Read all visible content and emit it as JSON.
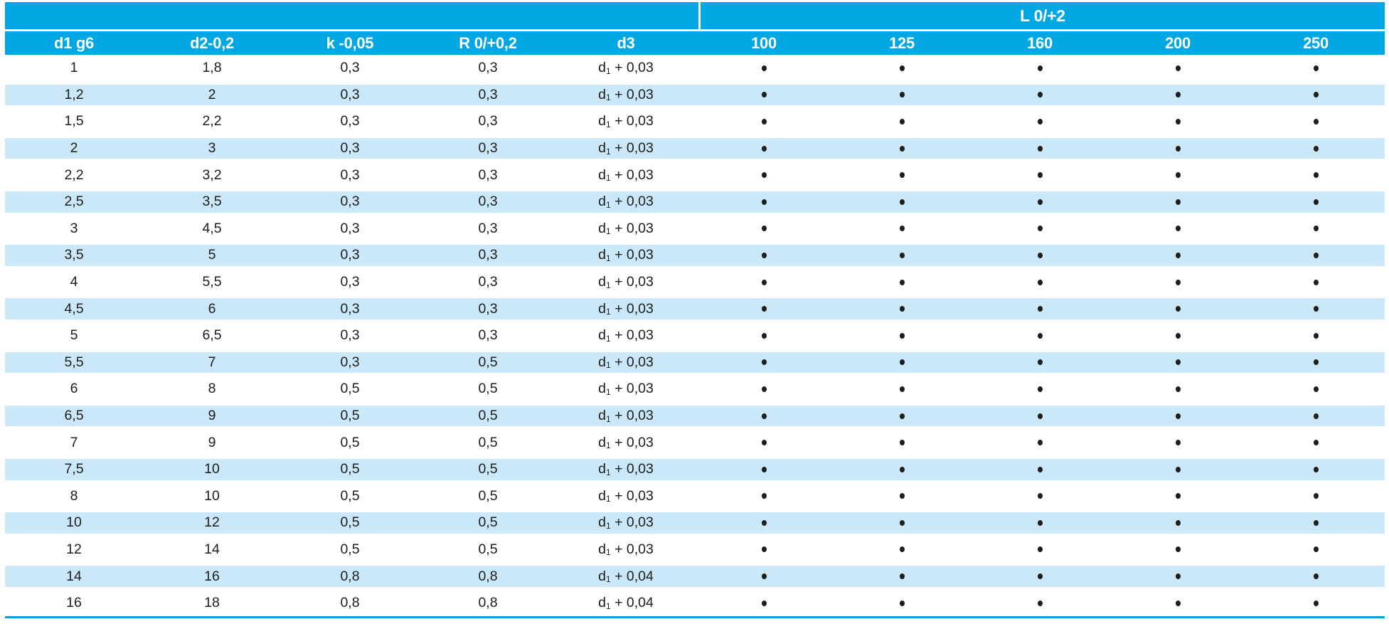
{
  "table": {
    "span_header": "L 0/+2",
    "columns": {
      "d1": "d1 g6",
      "d2": "d2-0,2",
      "k": "k -0,05",
      "r": "R 0/+0,2",
      "d3": "d3"
    },
    "length_columns": [
      "100",
      "125",
      "160",
      "200",
      "250"
    ],
    "bullet": "•",
    "rows": [
      {
        "d1": "1",
        "d2": "1,8",
        "k": "0,3",
        "r": "0,3",
        "d3": {
          "base": "d",
          "sub": "1",
          "rest": " + 0,03"
        },
        "dots": [
          true,
          true,
          true,
          true,
          true
        ]
      },
      {
        "d1": "1,2",
        "d2": "2",
        "k": "0,3",
        "r": "0,3",
        "d3": {
          "base": "d",
          "sub": "1",
          "rest": " + 0,03"
        },
        "dots": [
          true,
          true,
          true,
          true,
          true
        ]
      },
      {
        "d1": "1,5",
        "d2": "2,2",
        "k": "0,3",
        "r": "0,3",
        "d3": {
          "base": "d",
          "sub": "1",
          "rest": " + 0,03"
        },
        "dots": [
          true,
          true,
          true,
          true,
          true
        ]
      },
      {
        "d1": "2",
        "d2": "3",
        "k": "0,3",
        "r": "0,3",
        "d3": {
          "base": "d",
          "sub": "1",
          "rest": " + 0,03"
        },
        "dots": [
          true,
          true,
          true,
          true,
          true
        ]
      },
      {
        "d1": "2,2",
        "d2": "3,2",
        "k": "0,3",
        "r": "0,3",
        "d3": {
          "base": "d",
          "sub": "1",
          "rest": " + 0,03"
        },
        "dots": [
          true,
          true,
          true,
          true,
          true
        ]
      },
      {
        "d1": "2,5",
        "d2": "3,5",
        "k": "0,3",
        "r": "0,3",
        "d3": {
          "base": "d",
          "sub": "1",
          "rest": " + 0,03"
        },
        "dots": [
          true,
          true,
          true,
          true,
          true
        ]
      },
      {
        "d1": "3",
        "d2": "4,5",
        "k": "0,3",
        "r": "0,3",
        "d3": {
          "base": "d",
          "sub": "1",
          "rest": " + 0,03"
        },
        "dots": [
          true,
          true,
          true,
          true,
          true
        ]
      },
      {
        "d1": "3,5",
        "d2": "5",
        "k": "0,3",
        "r": "0,3",
        "d3": {
          "base": "d",
          "sub": "1",
          "rest": " + 0,03"
        },
        "dots": [
          true,
          true,
          true,
          true,
          true
        ]
      },
      {
        "d1": "4",
        "d2": "5,5",
        "k": "0,3",
        "r": "0,3",
        "d3": {
          "base": "d",
          "sub": "1",
          "rest": " + 0,03"
        },
        "dots": [
          true,
          true,
          true,
          true,
          true
        ]
      },
      {
        "d1": "4,5",
        "d2": "6",
        "k": "0,3",
        "r": "0,3",
        "d3": {
          "base": "d",
          "sub": "1",
          "rest": " + 0,03"
        },
        "dots": [
          true,
          true,
          true,
          true,
          true
        ]
      },
      {
        "d1": "5",
        "d2": "6,5",
        "k": "0,3",
        "r": "0,3",
        "d3": {
          "base": "d",
          "sub": "1",
          "rest": " + 0,03"
        },
        "dots": [
          true,
          true,
          true,
          true,
          true
        ]
      },
      {
        "d1": "5,5",
        "d2": "7",
        "k": "0,3",
        "r": "0,5",
        "d3": {
          "base": "d",
          "sub": "1",
          "rest": " + 0,03"
        },
        "dots": [
          true,
          true,
          true,
          true,
          true
        ]
      },
      {
        "d1": "6",
        "d2": "8",
        "k": "0,5",
        "r": "0,5",
        "d3": {
          "base": "d",
          "sub": "1",
          "rest": " + 0,03"
        },
        "dots": [
          true,
          true,
          true,
          true,
          true
        ]
      },
      {
        "d1": "6,5",
        "d2": "9",
        "k": "0,5",
        "r": "0,5",
        "d3": {
          "base": "d",
          "sub": "1",
          "rest": " + 0,03"
        },
        "dots": [
          true,
          true,
          true,
          true,
          true
        ]
      },
      {
        "d1": "7",
        "d2": "9",
        "k": "0,5",
        "r": "0,5",
        "d3": {
          "base": "d",
          "sub": "1",
          "rest": " + 0,03"
        },
        "dots": [
          true,
          true,
          true,
          true,
          true
        ]
      },
      {
        "d1": "7,5",
        "d2": "10",
        "k": "0,5",
        "r": "0,5",
        "d3": {
          "base": "d",
          "sub": "1",
          "rest": " + 0,03"
        },
        "dots": [
          true,
          true,
          true,
          true,
          true
        ]
      },
      {
        "d1": "8",
        "d2": "10",
        "k": "0,5",
        "r": "0,5",
        "d3": {
          "base": "d",
          "sub": "1",
          "rest": " + 0,03"
        },
        "dots": [
          true,
          true,
          true,
          true,
          true
        ]
      },
      {
        "d1": "10",
        "d2": "12",
        "k": "0,5",
        "r": "0,5",
        "d3": {
          "base": "d",
          "sub": "1",
          "rest": " + 0,03"
        },
        "dots": [
          true,
          true,
          true,
          true,
          true
        ]
      },
      {
        "d1": "12",
        "d2": "14",
        "k": "0,5",
        "r": "0,5",
        "d3": {
          "base": "d",
          "sub": "1",
          "rest": " + 0,03"
        },
        "dots": [
          true,
          true,
          true,
          true,
          true
        ]
      },
      {
        "d1": "14",
        "d2": "16",
        "k": "0,8",
        "r": "0,8",
        "d3": {
          "base": "d",
          "sub": "1",
          "rest": " + 0,04"
        },
        "dots": [
          true,
          true,
          true,
          true,
          true
        ]
      },
      {
        "d1": "16",
        "d2": "18",
        "k": "0,8",
        "r": "0,8",
        "d3": {
          "base": "d",
          "sub": "1",
          "rest": " + 0,04"
        },
        "dots": [
          true,
          true,
          true,
          true,
          true
        ]
      }
    ],
    "colors": {
      "header_bg": "#00a7e3",
      "stripe_bg": "#cbe8fa",
      "header_text": "#ffffff",
      "body_text": "#1d1d1b",
      "bottom_rule": "#0d9fdd"
    }
  }
}
